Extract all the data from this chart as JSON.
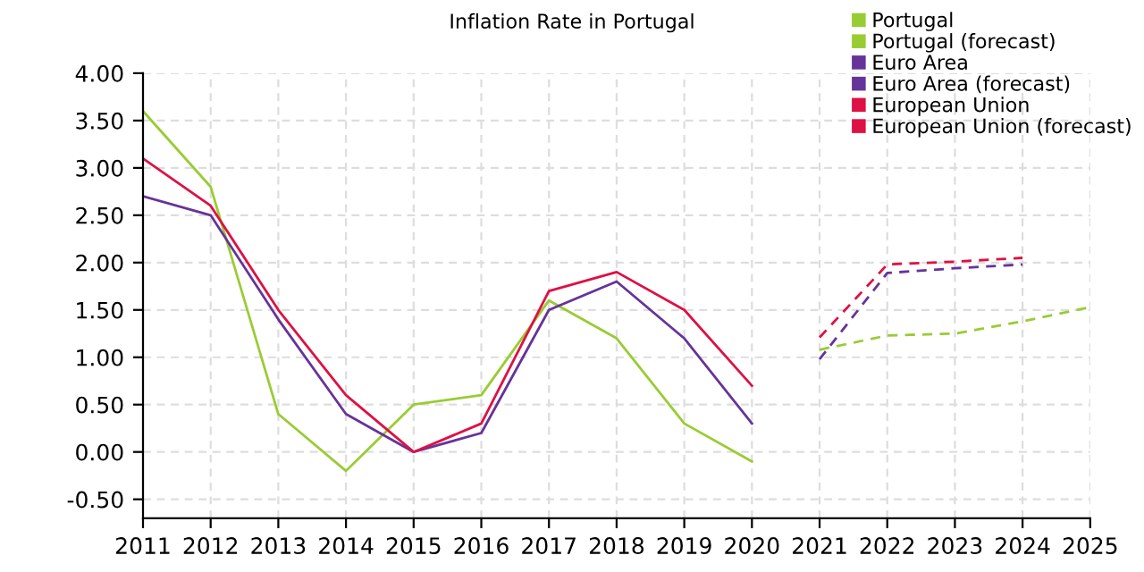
{
  "chart_data": {
    "type": "line",
    "title": "Inflation Rate in Portugal",
    "xlim": [
      2011,
      2025
    ],
    "xticks": [
      2011,
      2012,
      2013,
      2014,
      2015,
      2016,
      2017,
      2018,
      2019,
      2020,
      2021,
      2022,
      2023,
      2024,
      2025
    ],
    "ylim": [
      -0.7,
      4.0
    ],
    "yticks": [
      {
        "value": -0.5,
        "label": "-0.50"
      },
      {
        "value": 0,
        "label": "0.00"
      },
      {
        "value": 0.5,
        "label": "0.50"
      },
      {
        "value": 1,
        "label": "1.00"
      },
      {
        "value": 1.5,
        "label": "1.50"
      },
      {
        "value": 2,
        "label": "2.00"
      },
      {
        "value": 2.5,
        "label": "2.50"
      },
      {
        "value": 3,
        "label": "3.00"
      },
      {
        "value": 3.5,
        "label": "3.50"
      },
      {
        "value": 4,
        "label": "4.00"
      }
    ],
    "grid": true,
    "legend": "top right",
    "marker": "none",
    "series": [
      {
        "name": "Portugal",
        "color": "#99cc33",
        "line_style": "solid",
        "x": [
          2011,
          2012,
          2013,
          2014,
          2015,
          2016,
          2017,
          2018,
          2019,
          2020
        ],
        "values": [
          3.6,
          2.8,
          0.4,
          -0.2,
          0.5,
          0.6,
          1.6,
          1.2,
          0.3,
          -0.1
        ]
      },
      {
        "name": "Portugal (forecast)",
        "color": "#99cc33",
        "line_style": "dashed",
        "x": [
          2021,
          2022,
          2023,
          2024,
          2025
        ],
        "values": [
          1.08,
          1.23,
          1.25,
          1.38,
          1.53
        ]
      },
      {
        "name": "Euro Area",
        "color": "#663399",
        "line_style": "solid",
        "x": [
          2011,
          2012,
          2013,
          2014,
          2015,
          2016,
          2017,
          2018,
          2019,
          2020
        ],
        "values": [
          2.7,
          2.5,
          1.4,
          0.4,
          0.0,
          0.2,
          1.5,
          1.8,
          1.2,
          0.3
        ]
      },
      {
        "name": "Euro Area (forecast)",
        "color": "#663399",
        "line_style": "dashed",
        "x": [
          2021,
          2022,
          2023,
          2024
        ],
        "values": [
          0.98,
          1.89,
          1.94,
          1.98
        ]
      },
      {
        "name": "European Union",
        "color": "#dd1144",
        "line_style": "solid",
        "x": [
          2011,
          2012,
          2013,
          2014,
          2015,
          2016,
          2017,
          2018,
          2019,
          2020
        ],
        "values": [
          3.1,
          2.6,
          1.5,
          0.6,
          0.0,
          0.3,
          1.7,
          1.9,
          1.5,
          0.7
        ]
      },
      {
        "name": "European Union (forecast)",
        "color": "#dd1144",
        "line_style": "dashed",
        "x": [
          2021,
          2022,
          2023,
          2024
        ],
        "values": [
          1.21,
          1.98,
          2.01,
          2.05
        ]
      }
    ]
  }
}
